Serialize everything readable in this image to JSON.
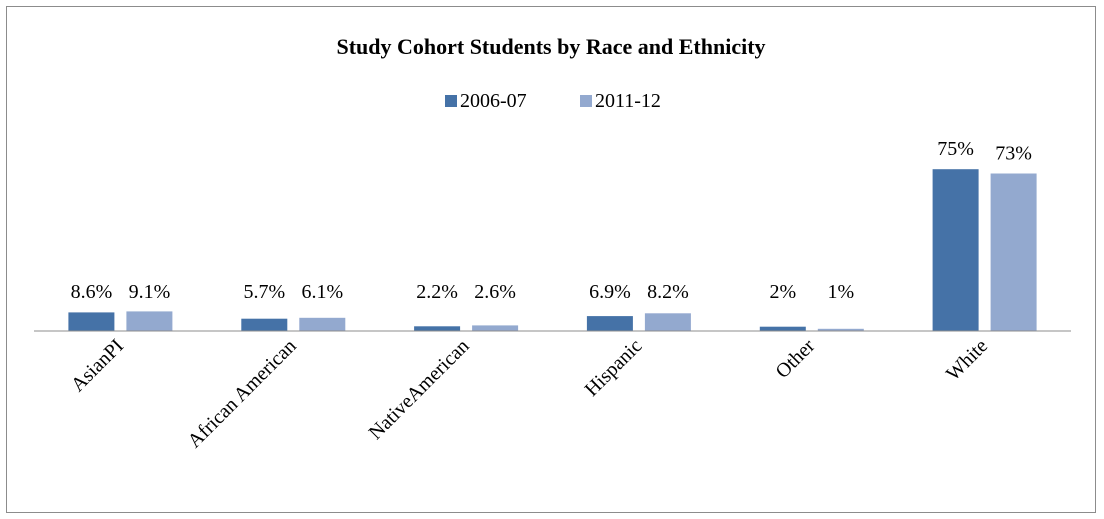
{
  "chart_data": {
    "type": "bar",
    "title": "Study Cohort Students by Race and Ethnicity",
    "xlabel": "",
    "ylabel": "",
    "categories": [
      "AsianPI",
      "African American",
      "NativeAmerican",
      "Hispanic",
      "Other",
      "White"
    ],
    "series": [
      {
        "name": "2006-07",
        "color": "#4572a7",
        "values": [
          8.6,
          5.7,
          2.2,
          6.9,
          2,
          75
        ],
        "labels": [
          "8.6%",
          "5.7%",
          "2.2%",
          "6.9%",
          "2%",
          "75%"
        ]
      },
      {
        "name": "2011-12",
        "color": "#93a9cf",
        "values": [
          9.1,
          6.1,
          2.6,
          8.2,
          1,
          73
        ],
        "labels": [
          "9.1%",
          "6.1%",
          "2.6%",
          "8.2%",
          "1%",
          "73%"
        ]
      }
    ],
    "ylim": [
      0,
      80
    ],
    "grid": false,
    "legend_position": "top"
  }
}
